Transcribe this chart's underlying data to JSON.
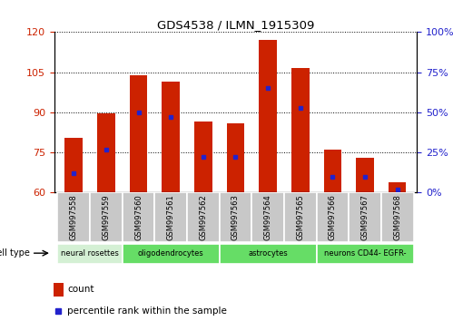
{
  "title": "GDS4538 / ILMN_1915309",
  "samples": [
    "GSM997558",
    "GSM997559",
    "GSM997560",
    "GSM997561",
    "GSM997562",
    "GSM997563",
    "GSM997564",
    "GSM997565",
    "GSM997566",
    "GSM997567",
    "GSM997568"
  ],
  "counts": [
    80.5,
    89.5,
    104.0,
    101.5,
    86.5,
    86.0,
    117.0,
    106.5,
    76.0,
    73.0,
    64.0
  ],
  "percentile_ranks": [
    12,
    27,
    50,
    47,
    22,
    22,
    65,
    53,
    10,
    10,
    2
  ],
  "ymin": 60,
  "ymax": 120,
  "yticks_left": [
    60,
    75,
    90,
    105,
    120
  ],
  "yticks_right": [
    0,
    25,
    50,
    75,
    100
  ],
  "bar_color": "#cc2200",
  "percentile_color": "#2222cc",
  "bar_width": 0.55,
  "cell_types": [
    {
      "label": "neural rosettes",
      "start": 0,
      "end": 1,
      "color": "#d4f0d4"
    },
    {
      "label": "oligodendrocytes",
      "start": 2,
      "end": 4,
      "color": "#66dd66"
    },
    {
      "label": "astrocytes",
      "start": 5,
      "end": 7,
      "color": "#66dd66"
    },
    {
      "label": "neurons CD44- EGFR-",
      "start": 8,
      "end": 10,
      "color": "#66dd66"
    }
  ],
  "legend_count_label": "count",
  "legend_percentile_label": "percentile rank within the sample",
  "cell_type_label": "cell type"
}
